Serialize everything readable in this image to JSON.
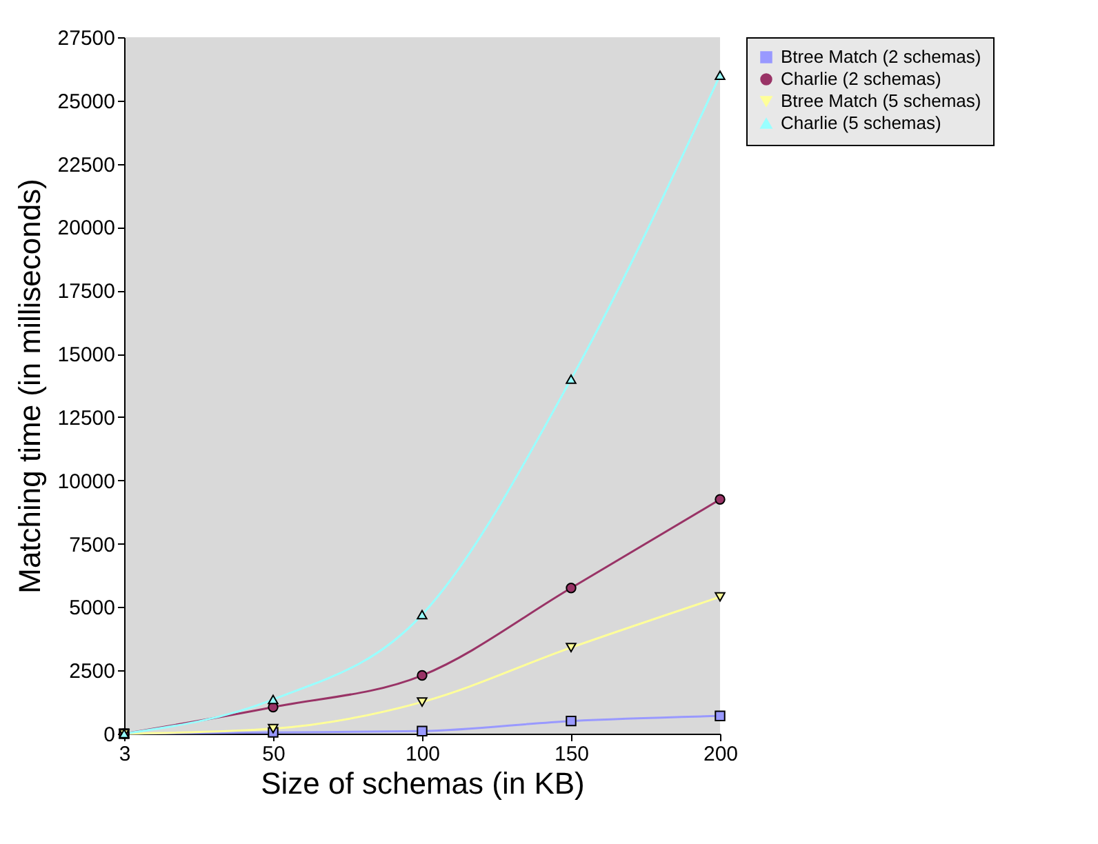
{
  "chart_data": {
    "type": "line",
    "xlabel": "Size of schemas (in KB)",
    "ylabel": "Matching time (in milliseconds)",
    "categories": [
      "3",
      "50",
      "100",
      "150",
      "200"
    ],
    "ylim": [
      0,
      27500
    ],
    "yticks": [
      0,
      2500,
      5000,
      7500,
      10000,
      12500,
      15000,
      17500,
      20000,
      22500,
      25000,
      27500
    ],
    "grid": false,
    "legend": "right",
    "series": [
      {
        "name": "Btree Match (2 schemas)",
        "color": "#9999ff",
        "marker": "square",
        "values": [
          0,
          50,
          100,
          500,
          700
        ]
      },
      {
        "name": "Charlie (2 schemas)",
        "color": "#993366",
        "marker": "circle",
        "values": [
          0,
          1050,
          2300,
          5750,
          9250
        ]
      },
      {
        "name": "Btree Match (5 schemas)",
        "color": "#ffff99",
        "marker": "triangle-down",
        "values": [
          0,
          200,
          1250,
          3400,
          5400
        ]
      },
      {
        "name": "Charlie (5 schemas)",
        "color": "#99ffff",
        "marker": "triangle",
        "values": [
          0,
          1350,
          4700,
          14000,
          26000
        ]
      }
    ]
  }
}
